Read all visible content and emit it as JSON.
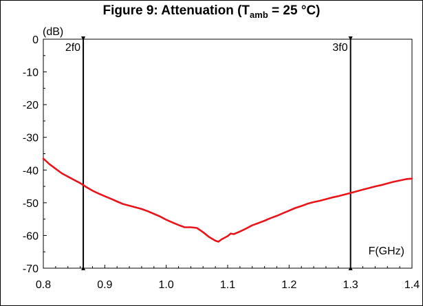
{
  "title": {
    "prefix": "Figure 9: Attenuation (T",
    "subscript": "amb",
    "suffix": " = 25 °C)"
  },
  "chart_data": {
    "type": "line",
    "title": "Figure 9: Attenuation (Tamb = 25 °C)",
    "ylabel": "(dB)",
    "xlabel": "F(GHz)",
    "xlim": [
      0.8,
      1.4
    ],
    "ylim": [
      -70,
      0
    ],
    "xticks": [
      0.8,
      0.9,
      1.0,
      1.1,
      1.2,
      1.3,
      1.4
    ],
    "xtick_labels": [
      "0.8",
      "0.9",
      "1.0",
      "1.1",
      "1.2",
      "1.3",
      "1.4"
    ],
    "yticks": [
      0,
      -10,
      -20,
      -30,
      -40,
      -50,
      -60,
      -70
    ],
    "ytick_labels": [
      "0",
      "-10",
      "-20",
      "-30",
      "-40",
      "-50",
      "-60",
      "-70"
    ],
    "grid": false,
    "line_color": "#e8141a",
    "marker_color": "#000000",
    "markers": [
      {
        "label": "2f0",
        "x": 0.865
      },
      {
        "label": "3f0",
        "x": 1.3
      }
    ],
    "series": [
      {
        "x": [
          0.8,
          0.81,
          0.82,
          0.83,
          0.84,
          0.85,
          0.86,
          0.87,
          0.88,
          0.89,
          0.9,
          0.91,
          0.92,
          0.93,
          0.94,
          0.95,
          0.96,
          0.97,
          0.98,
          0.99,
          1.0,
          1.01,
          1.02,
          1.03,
          1.04,
          1.05,
          1.06,
          1.07,
          1.08,
          1.085,
          1.09,
          1.1,
          1.105,
          1.11,
          1.12,
          1.13,
          1.14,
          1.15,
          1.16,
          1.17,
          1.18,
          1.19,
          1.2,
          1.21,
          1.22,
          1.23,
          1.24,
          1.25,
          1.26,
          1.27,
          1.28,
          1.29,
          1.3,
          1.31,
          1.32,
          1.33,
          1.34,
          1.35,
          1.36,
          1.37,
          1.38,
          1.39,
          1.4
        ],
        "y": [
          -36.5,
          -38.2,
          -39.6,
          -41.0,
          -42.0,
          -43.0,
          -44.0,
          -45.2,
          -46.3,
          -47.2,
          -48.0,
          -48.8,
          -49.6,
          -50.4,
          -50.9,
          -51.4,
          -51.9,
          -52.6,
          -53.4,
          -54.2,
          -55.2,
          -56.0,
          -56.8,
          -57.5,
          -57.5,
          -57.7,
          -59.0,
          -60.5,
          -61.6,
          -61.9,
          -61.2,
          -60.2,
          -59.4,
          -59.6,
          -58.8,
          -57.9,
          -56.9,
          -56.2,
          -55.5,
          -54.7,
          -54.0,
          -53.2,
          -52.4,
          -51.6,
          -51.0,
          -50.3,
          -49.8,
          -49.4,
          -48.9,
          -48.4,
          -48.0,
          -47.5,
          -47.0,
          -46.5,
          -46.0,
          -45.5,
          -45.0,
          -44.6,
          -44.1,
          -43.6,
          -43.2,
          -42.8,
          -42.6
        ]
      }
    ]
  }
}
